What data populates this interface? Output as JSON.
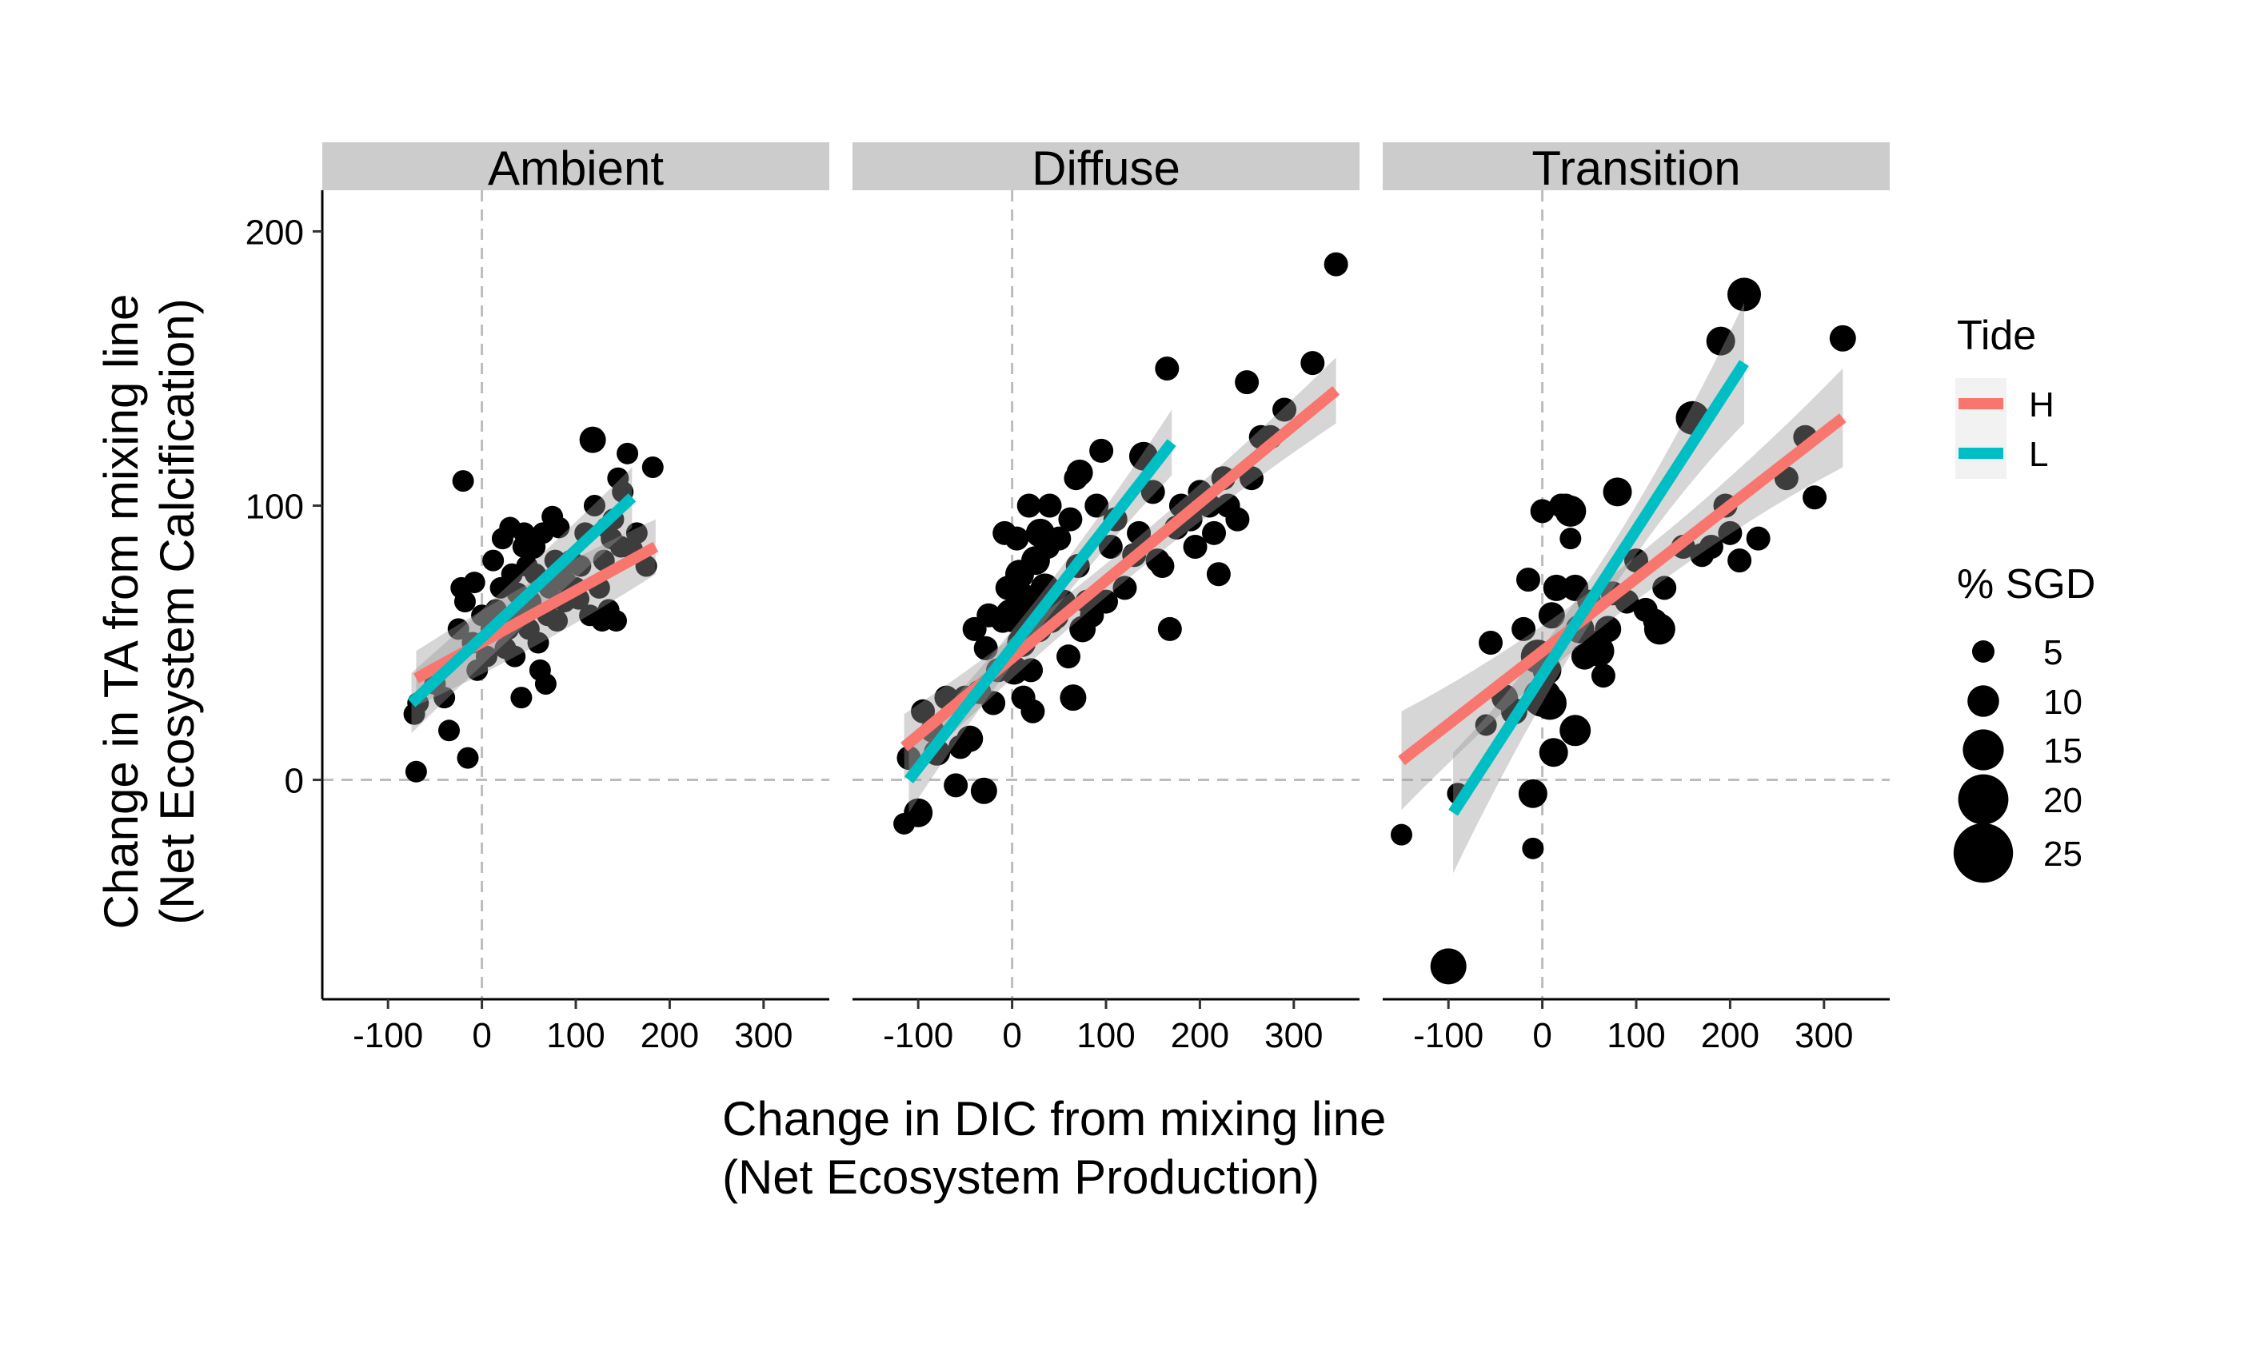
{
  "chart_data": {
    "type": "scatter",
    "facets": [
      "Ambient",
      "Diffuse",
      "Transition"
    ],
    "xlabel": [
      "Change in DIC from mixing line",
      "(Net Ecosystem Production)"
    ],
    "ylabel": [
      "Change in TA from mixing line",
      "(Net Ecosystem Calcification)"
    ],
    "xlim": [
      -170,
      370
    ],
    "ylim": [
      -80,
      215
    ],
    "x_ticks": [
      -100,
      0,
      100,
      200,
      300
    ],
    "y_ticks": [
      0,
      100,
      200
    ],
    "reference_lines": {
      "x": 0,
      "y": 0,
      "style": "dashed"
    },
    "legend": {
      "placement": "right",
      "tide": {
        "title": "Tide",
        "items": [
          {
            "label": "H",
            "color": "#F8766D"
          },
          {
            "label": "L",
            "color": "#00BFC4"
          }
        ]
      },
      "size": {
        "title": "% SGD",
        "items": [
          {
            "label": "5",
            "value": 5
          },
          {
            "label": "10",
            "value": 10
          },
          {
            "label": "15",
            "value": 15
          },
          {
            "label": "20",
            "value": 20
          },
          {
            "label": "25",
            "value": 25
          }
        ]
      }
    },
    "panels": [
      {
        "name": "Ambient",
        "points": [
          [
            -70,
            3,
            3
          ],
          [
            -72,
            24,
            3
          ],
          [
            -68,
            28,
            3
          ],
          [
            -50,
            35,
            3
          ],
          [
            -40,
            30,
            3
          ],
          [
            -35,
            18,
            3
          ],
          [
            -15,
            8,
            3
          ],
          [
            -20,
            109,
            3
          ],
          [
            -25,
            55,
            3
          ],
          [
            -22,
            70,
            3
          ],
          [
            -18,
            65,
            3
          ],
          [
            -10,
            50,
            3
          ],
          [
            -8,
            72,
            3
          ],
          [
            0,
            60,
            3
          ],
          [
            -5,
            40,
            3
          ],
          [
            5,
            45,
            3
          ],
          [
            10,
            55,
            3
          ],
          [
            12,
            80,
            3
          ],
          [
            15,
            62,
            3
          ],
          [
            20,
            70,
            3
          ],
          [
            22,
            88,
            3
          ],
          [
            25,
            48,
            3
          ],
          [
            28,
            55,
            3
          ],
          [
            30,
            92,
            3
          ],
          [
            32,
            75,
            3
          ],
          [
            35,
            45,
            3
          ],
          [
            38,
            68,
            3
          ],
          [
            40,
            60,
            3
          ],
          [
            42,
            30,
            3
          ],
          [
            44,
            85,
            3
          ],
          [
            45,
            90,
            3
          ],
          [
            48,
            78,
            3
          ],
          [
            50,
            55,
            3
          ],
          [
            52,
            65,
            3
          ],
          [
            55,
            85,
            4
          ],
          [
            57,
            75,
            3
          ],
          [
            60,
            50,
            3
          ],
          [
            62,
            40,
            3
          ],
          [
            65,
            90,
            3
          ],
          [
            68,
            35,
            3
          ],
          [
            70,
            60,
            3
          ],
          [
            72,
            70,
            3
          ],
          [
            75,
            96,
            3
          ],
          [
            78,
            80,
            3
          ],
          [
            80,
            58,
            3
          ],
          [
            82,
            92,
            3
          ],
          [
            85,
            75,
            3
          ],
          [
            88,
            65,
            3
          ],
          [
            90,
            72,
            3
          ],
          [
            95,
            80,
            3
          ],
          [
            100,
            70,
            3
          ],
          [
            103,
            66,
            3
          ],
          [
            105,
            78,
            3
          ],
          [
            110,
            90,
            3
          ],
          [
            115,
            60,
            3
          ],
          [
            118,
            124,
            5
          ],
          [
            120,
            100,
            3
          ],
          [
            125,
            70,
            3
          ],
          [
            128,
            58,
            3
          ],
          [
            130,
            80,
            3
          ],
          [
            133,
            92,
            3
          ],
          [
            135,
            62,
            3
          ],
          [
            138,
            88,
            3
          ],
          [
            140,
            95,
            3
          ],
          [
            143,
            58,
            3
          ],
          [
            145,
            110,
            3
          ],
          [
            148,
            85,
            3
          ],
          [
            150,
            105,
            3
          ],
          [
            155,
            119,
            3
          ],
          [
            160,
            84,
            3
          ],
          [
            165,
            90,
            3
          ],
          [
            175,
            78,
            3
          ],
          [
            182,
            114,
            3
          ]
        ],
        "fits": [
          {
            "tide": "H",
            "x": [
              -70,
              185
            ],
            "y": [
              37,
              85
            ],
            "ci_mid": 12,
            "ci_end": 10
          },
          {
            "tide": "L",
            "x": [
              -75,
              160
            ],
            "y": [
              28,
              103
            ],
            "ci_mid": 10,
            "ci_end": 11
          }
        ]
      },
      {
        "name": "Diffuse",
        "points": [
          [
            -115,
            -16,
            3
          ],
          [
            -110,
            8,
            4
          ],
          [
            -100,
            -12,
            6
          ],
          [
            -95,
            25,
            4
          ],
          [
            -85,
            18,
            4
          ],
          [
            -80,
            10,
            5
          ],
          [
            -70,
            30,
            4
          ],
          [
            -60,
            -2,
            4
          ],
          [
            -55,
            12,
            4
          ],
          [
            -50,
            30,
            4
          ],
          [
            -45,
            15,
            5
          ],
          [
            -40,
            55,
            4
          ],
          [
            -35,
            32,
            4
          ],
          [
            -30,
            -4,
            5
          ],
          [
            -28,
            48,
            4
          ],
          [
            -25,
            60,
            4
          ],
          [
            -20,
            28,
            4
          ],
          [
            -15,
            40,
            4
          ],
          [
            -10,
            58,
            4
          ],
          [
            -8,
            90,
            4
          ],
          [
            -5,
            70,
            4
          ],
          [
            0,
            60,
            8
          ],
          [
            2,
            40,
            6
          ],
          [
            5,
            88,
            4
          ],
          [
            8,
            75,
            6
          ],
          [
            10,
            50,
            6
          ],
          [
            12,
            30,
            4
          ],
          [
            15,
            65,
            8
          ],
          [
            18,
            100,
            4
          ],
          [
            20,
            40,
            4
          ],
          [
            22,
            25,
            4
          ],
          [
            25,
            80,
            6
          ],
          [
            28,
            55,
            5
          ],
          [
            30,
            90,
            6
          ],
          [
            35,
            70,
            6
          ],
          [
            38,
            85,
            4
          ],
          [
            40,
            100,
            4
          ],
          [
            42,
            58,
            4
          ],
          [
            45,
            60,
            6
          ],
          [
            50,
            88,
            4
          ],
          [
            55,
            65,
            4
          ],
          [
            60,
            45,
            4
          ],
          [
            62,
            95,
            4
          ],
          [
            65,
            30,
            5
          ],
          [
            68,
            110,
            4
          ],
          [
            70,
            78,
            4
          ],
          [
            72,
            112,
            5
          ],
          [
            75,
            55,
            5
          ],
          [
            80,
            65,
            4
          ],
          [
            85,
            60,
            4
          ],
          [
            90,
            100,
            4
          ],
          [
            95,
            120,
            4
          ],
          [
            100,
            65,
            4
          ],
          [
            105,
            85,
            4
          ],
          [
            110,
            95,
            4
          ],
          [
            120,
            70,
            4
          ],
          [
            130,
            82,
            4
          ],
          [
            135,
            90,
            4
          ],
          [
            140,
            118,
            6
          ],
          [
            150,
            105,
            4
          ],
          [
            155,
            80,
            4
          ],
          [
            160,
            78,
            4
          ],
          [
            165,
            150,
            4
          ],
          [
            168,
            55,
            4
          ],
          [
            175,
            92,
            4
          ],
          [
            180,
            100,
            4
          ],
          [
            190,
            95,
            4
          ],
          [
            195,
            85,
            4
          ],
          [
            200,
            105,
            4
          ],
          [
            210,
            100,
            4
          ],
          [
            215,
            90,
            4
          ],
          [
            220,
            75,
            4
          ],
          [
            225,
            110,
            4
          ],
          [
            230,
            100,
            4
          ],
          [
            240,
            95,
            4
          ],
          [
            250,
            145,
            4
          ],
          [
            255,
            110,
            4
          ],
          [
            265,
            125,
            4
          ],
          [
            275,
            125,
            4
          ],
          [
            290,
            135,
            4
          ],
          [
            320,
            152,
            4
          ],
          [
            345,
            188,
            4
          ]
        ],
        "fits": [
          {
            "tide": "H",
            "x": [
              -115,
              345
            ],
            "y": [
              12,
              142
            ],
            "ci_mid": 6,
            "ci_end": 12
          },
          {
            "tide": "L",
            "x": [
              -110,
              170
            ],
            "y": [
              0,
              123
            ],
            "ci_mid": 6,
            "ci_end": 12
          }
        ]
      },
      {
        "name": "Transition",
        "points": [
          [
            -150,
            -20,
            3
          ],
          [
            -100,
            -68,
            9
          ],
          [
            -90,
            -5,
            3
          ],
          [
            -60,
            20,
            3
          ],
          [
            -55,
            50,
            4
          ],
          [
            -40,
            30,
            5
          ],
          [
            -30,
            25,
            5
          ],
          [
            -20,
            55,
            4
          ],
          [
            -15,
            73,
            4
          ],
          [
            -10,
            -25,
            3
          ],
          [
            -10,
            -5,
            6
          ],
          [
            -5,
            45,
            8
          ],
          [
            0,
            30,
            10
          ],
          [
            0,
            98,
            4
          ],
          [
            5,
            40,
            6
          ],
          [
            8,
            28,
            8
          ],
          [
            10,
            60,
            5
          ],
          [
            12,
            10,
            6
          ],
          [
            15,
            70,
            5
          ],
          [
            20,
            100,
            4
          ],
          [
            25,
            100,
            4
          ],
          [
            30,
            88,
            3
          ],
          [
            30,
            98,
            7
          ],
          [
            35,
            18,
            7
          ],
          [
            35,
            70,
            5
          ],
          [
            40,
            55,
            6
          ],
          [
            45,
            45,
            5
          ],
          [
            50,
            65,
            4
          ],
          [
            55,
            50,
            4
          ],
          [
            60,
            47,
            7
          ],
          [
            65,
            38,
            4
          ],
          [
            70,
            55,
            5
          ],
          [
            75,
            68,
            4
          ],
          [
            80,
            105,
            6
          ],
          [
            90,
            65,
            4
          ],
          [
            100,
            80,
            4
          ],
          [
            110,
            62,
            4
          ],
          [
            120,
            58,
            4
          ],
          [
            125,
            55,
            7
          ],
          [
            130,
            70,
            4
          ],
          [
            150,
            85,
            4
          ],
          [
            160,
            132,
            8
          ],
          [
            170,
            82,
            4
          ],
          [
            180,
            85,
            4
          ],
          [
            190,
            160,
            6
          ],
          [
            195,
            100,
            4
          ],
          [
            200,
            90,
            4
          ],
          [
            210,
            80,
            4
          ],
          [
            215,
            177,
            8
          ],
          [
            230,
            88,
            4
          ],
          [
            260,
            110,
            4
          ],
          [
            280,
            125,
            4
          ],
          [
            290,
            103,
            4
          ],
          [
            320,
            161,
            5
          ]
        ],
        "fits": [
          {
            "tide": "H",
            "x": [
              -150,
              320
            ],
            "y": [
              7,
              132
            ],
            "ci_mid": 8,
            "ci_end": 18
          },
          {
            "tide": "L",
            "x": [
              -95,
              215
            ],
            "y": [
              -12,
              152
            ],
            "ci_mid": 8,
            "ci_end": 22
          }
        ]
      }
    ]
  }
}
